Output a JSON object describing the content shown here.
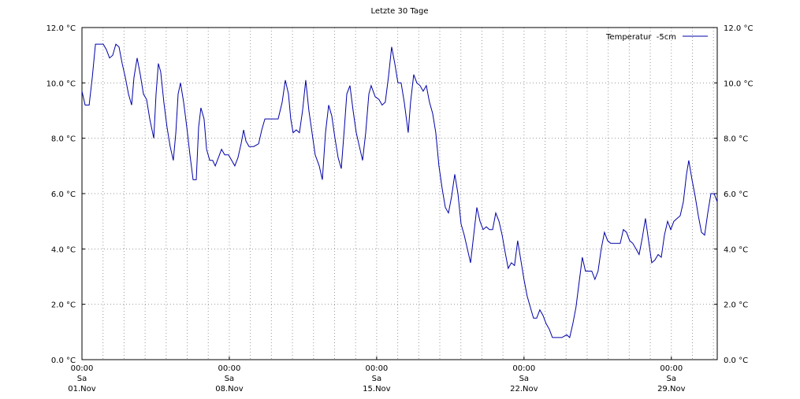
{
  "chart_data": {
    "type": "line",
    "title": "Letzte 30 Tage",
    "x": [
      0,
      0.15,
      0.34,
      0.49,
      0.64,
      0.79,
      1.01,
      1.16,
      1.31,
      1.46,
      1.61,
      1.76,
      1.91,
      2.06,
      2.21,
      2.36,
      2.47,
      2.62,
      2.77,
      2.92,
      3.07,
      3.22,
      3.41,
      3.52,
      3.63,
      3.74,
      3.89,
      4.04,
      4.19,
      4.34,
      4.46,
      4.57,
      4.68,
      4.83,
      4.98,
      5.13,
      5.28,
      5.43,
      5.54,
      5.65,
      5.8,
      5.92,
      6.07,
      6.21,
      6.33,
      6.48,
      6.63,
      6.78,
      6.96,
      7.11,
      7.26,
      7.41,
      7.56,
      7.68,
      7.79,
      7.94,
      8.16,
      8.39,
      8.54,
      8.69,
      8.91,
      9.14,
      9.32,
      9.51,
      9.66,
      9.81,
      9.92,
      10.03,
      10.18,
      10.33,
      10.48,
      10.63,
      10.78,
      10.93,
      11.08,
      11.27,
      11.42,
      11.57,
      11.72,
      11.87,
      12.02,
      12.17,
      12.32,
      12.47,
      12.58,
      12.73,
      12.88,
      13.03,
      13.18,
      13.33,
      13.48,
      13.63,
      13.74,
      13.93,
      14.11,
      14.26,
      14.41,
      14.56,
      14.71,
      14.86,
      15.01,
      15.16,
      15.31,
      15.5,
      15.61,
      15.76,
      15.91,
      16.06,
      16.21,
      16.36,
      16.51,
      16.66,
      16.81,
      16.96,
      17.11,
      17.26,
      17.41,
      17.56,
      17.71,
      17.86,
      18.01,
      18.16,
      18.31,
      18.46,
      18.61,
      18.76,
      18.91,
      19.06,
      19.21,
      19.36,
      19.51,
      19.66,
      19.81,
      19.96,
      20.1,
      20.25,
      20.4,
      20.55,
      20.7,
      20.85,
      21.0,
      21.15,
      21.3,
      21.45,
      21.6,
      21.75,
      21.9,
      22.05,
      22.2,
      22.35,
      22.5,
      22.8,
      23.03,
      23.17,
      23.32,
      23.47,
      23.62,
      23.77,
      23.92,
      24.22,
      24.37,
      24.52,
      24.67,
      24.82,
      24.97,
      25.12,
      25.57,
      25.72,
      25.87,
      26.02,
      26.17,
      26.32,
      26.47,
      26.62,
      26.77,
      26.92,
      27.07,
      27.22,
      27.37,
      27.52,
      27.67,
      27.82,
      27.97,
      28.12,
      28.27,
      28.42,
      28.57,
      28.72,
      28.83,
      28.98,
      29.13,
      29.28,
      29.43,
      29.58,
      29.73,
      29.88,
      30.03,
      30.18
    ],
    "series": [
      {
        "name": "Temperatur  -5cm",
        "color": "#0000a8",
        "values": [
          9.7,
          9.2,
          9.2,
          10.2,
          11.4,
          11.4,
          11.4,
          11.2,
          10.9,
          11.0,
          11.4,
          11.3,
          10.7,
          10.2,
          9.6,
          9.2,
          10.2,
          10.9,
          10.3,
          9.6,
          9.4,
          8.7,
          8.0,
          9.6,
          10.7,
          10.4,
          9.3,
          8.4,
          7.7,
          7.2,
          8.2,
          9.6,
          10.0,
          9.3,
          8.4,
          7.4,
          6.5,
          6.5,
          8.4,
          9.1,
          8.7,
          7.6,
          7.2,
          7.2,
          7.0,
          7.3,
          7.6,
          7.4,
          7.4,
          7.2,
          7.0,
          7.3,
          7.8,
          8.3,
          7.9,
          7.7,
          7.7,
          7.8,
          8.3,
          8.7,
          8.7,
          8.7,
          8.7,
          9.3,
          10.1,
          9.6,
          8.7,
          8.2,
          8.3,
          8.2,
          9.0,
          10.1,
          9.0,
          8.2,
          7.4,
          7.0,
          6.5,
          8.2,
          9.2,
          8.8,
          8.0,
          7.3,
          6.9,
          8.4,
          9.6,
          9.9,
          9.0,
          8.2,
          7.7,
          7.2,
          8.2,
          9.6,
          9.9,
          9.5,
          9.4,
          9.2,
          9.3,
          10.2,
          11.3,
          10.7,
          10.0,
          10.0,
          9.3,
          8.2,
          9.3,
          10.3,
          10.0,
          9.9,
          9.7,
          9.9,
          9.3,
          8.9,
          8.2,
          7.0,
          6.2,
          5.5,
          5.3,
          5.9,
          6.7,
          6.0,
          4.9,
          4.5,
          4.0,
          3.5,
          4.5,
          5.5,
          5.0,
          4.7,
          4.8,
          4.7,
          4.7,
          5.3,
          5.0,
          4.5,
          3.9,
          3.3,
          3.5,
          3.4,
          4.3,
          3.6,
          2.9,
          2.3,
          1.9,
          1.5,
          1.5,
          1.8,
          1.6,
          1.3,
          1.1,
          0.8,
          0.8,
          0.8,
          0.9,
          0.8,
          1.3,
          1.9,
          2.8,
          3.7,
          3.2,
          3.2,
          2.9,
          3.2,
          4.0,
          4.6,
          4.3,
          4.2,
          4.2,
          4.7,
          4.6,
          4.3,
          4.2,
          4.0,
          3.8,
          4.4,
          5.1,
          4.3,
          3.5,
          3.6,
          3.8,
          3.7,
          4.5,
          5.0,
          4.7,
          5.0,
          5.1,
          5.2,
          5.7,
          6.7,
          7.2,
          6.5,
          5.9,
          5.2,
          4.6,
          4.5,
          5.3,
          6.0,
          6.0,
          5.7
        ]
      }
    ],
    "xlim": [
      0,
      30.18
    ],
    "xticks": [
      {
        "value": 0,
        "label": "00:00\nSa\n01.Nov"
      },
      {
        "value": 7,
        "label": "00:00\nSa\n08.Nov"
      },
      {
        "value": 14,
        "label": "00:00\nSa\n15.Nov"
      },
      {
        "value": 21,
        "label": "00:00\nSa\n22.Nov"
      },
      {
        "value": 28,
        "label": "00:00\nSa\n29.Nov"
      }
    ],
    "minor_xticks": [
      1,
      2,
      3,
      4,
      5,
      6,
      8,
      9,
      10,
      11,
      12,
      13,
      15,
      16,
      17,
      18,
      19,
      20,
      22,
      23,
      24,
      25,
      26,
      27,
      29,
      30
    ],
    "ylim": [
      0,
      12
    ],
    "yticks": [
      {
        "value": 0,
        "label": "0.0 °C"
      },
      {
        "value": 2,
        "label": "2.0 °C"
      },
      {
        "value": 4,
        "label": "4.0 °C"
      },
      {
        "value": 6,
        "label": "6.0 °C"
      },
      {
        "value": 8,
        "label": "8.0 °C"
      },
      {
        "value": 10,
        "label": "10.0 °C"
      },
      {
        "value": 12,
        "label": "12.0 °C"
      }
    ],
    "grid": true,
    "legend": "top-right"
  }
}
